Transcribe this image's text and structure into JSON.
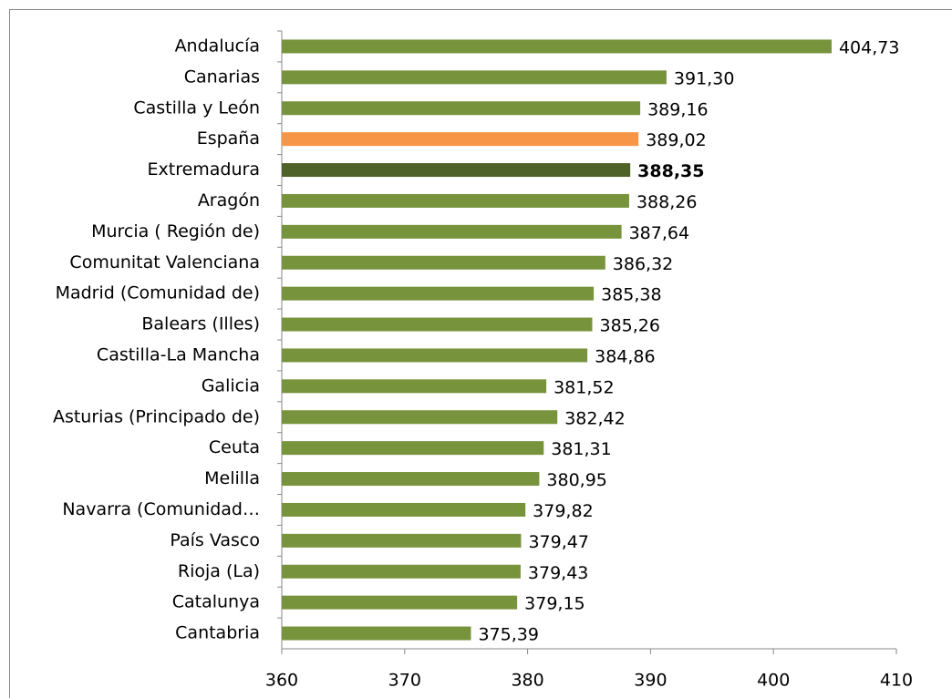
{
  "chart_data": {
    "type": "bar",
    "orientation": "horizontal",
    "categories": [
      "Andalucía",
      "Canarias",
      "Castilla y León",
      "España",
      "Extremadura",
      "Aragón",
      "Murcia ( Región de)",
      "Comunitat Valenciana",
      "Madrid (Comunidad de)",
      "Balears (Illes)",
      "Castilla-La Mancha",
      "Galicia",
      "Asturias (Principado de)",
      "Ceuta",
      "Melilla",
      "Navarra (Comunidad…",
      "País Vasco",
      "Rioja (La)",
      "Catalunya",
      "Cantabria"
    ],
    "values": [
      404.73,
      391.3,
      389.16,
      389.02,
      388.35,
      388.26,
      387.64,
      386.32,
      385.38,
      385.26,
      384.86,
      381.52,
      382.42,
      381.31,
      380.95,
      379.82,
      379.47,
      379.43,
      379.15,
      375.39
    ],
    "value_labels": [
      "404,73",
      "391,30",
      "389,16",
      "389,02",
      "388,35",
      "388,26",
      "387,64",
      "386,32",
      "385,38",
      "385,26",
      "384,86",
      "381,52",
      "382,42",
      "381,31",
      "380,95",
      "379,82",
      "379,47",
      "379,43",
      "379,15",
      "375,39"
    ],
    "colors": [
      "#77933c",
      "#77933c",
      "#77933c",
      "#f79646",
      "#4f6228",
      "#77933c",
      "#77933c",
      "#77933c",
      "#77933c",
      "#77933c",
      "#77933c",
      "#77933c",
      "#77933c",
      "#77933c",
      "#77933c",
      "#77933c",
      "#77933c",
      "#77933c",
      "#77933c",
      "#77933c"
    ],
    "bold_value_label_indices": [
      4
    ],
    "xlim": [
      360,
      410
    ],
    "xticks": [
      360,
      370,
      380,
      390,
      400,
      410
    ],
    "grid": false
  }
}
